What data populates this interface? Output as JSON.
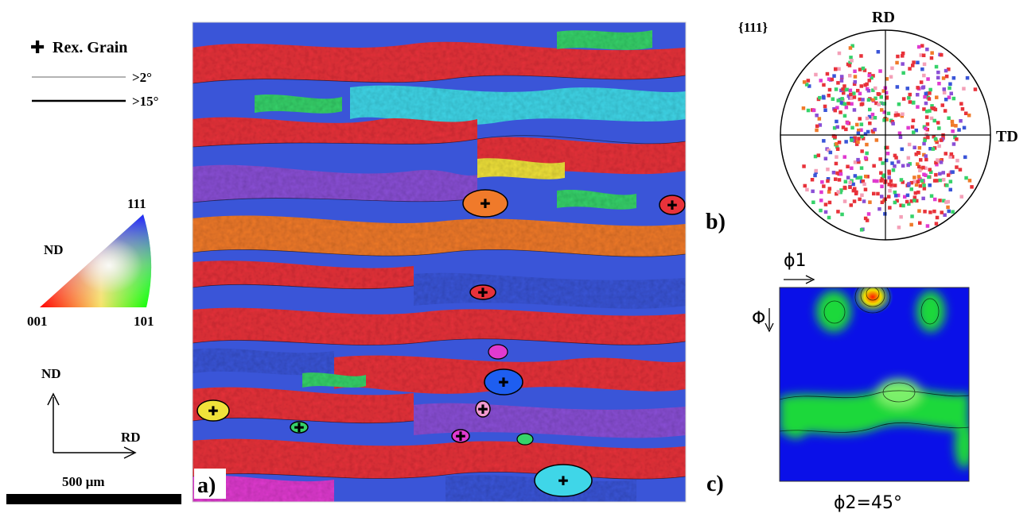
{
  "legend": {
    "rex_grain": "Rex. Grain",
    "low_angle": ">2°",
    "high_angle": ">15°",
    "colors": {
      "low_angle_line": "#9a9a9a",
      "high_angle_line": "#000000",
      "rex_marker": "#000000"
    }
  },
  "ipf_key": {
    "normal": "ND",
    "corner_top": "111",
    "corner_left": "001",
    "corner_right": "101",
    "colors": {
      "001": "#ff0000",
      "101": "#00ff00",
      "111": "#0000ff"
    }
  },
  "axes": {
    "vertical": "ND",
    "horizontal": "RD"
  },
  "scale_bar": {
    "label": "500 μm"
  },
  "panels": {
    "a": {
      "label": "a)",
      "icons": [
        "ebsd-ipf-map"
      ]
    },
    "b": {
      "label": "b)",
      "title": "{111}",
      "top_axis": "RD",
      "right_axis": "TD",
      "icons": [
        "pole-figure"
      ]
    },
    "c": {
      "label": "c)",
      "x_axis": "ϕ1",
      "y_axis": "Φ",
      "section": "ϕ2=45°",
      "icons": [
        "odf-section"
      ]
    }
  },
  "palette": {
    "red": "#e8323a",
    "orange": "#f07a2a",
    "blue": "#3a55d8",
    "violet": "#8a4fd6",
    "green": "#36d26a",
    "cyan": "#3fd6e8",
    "yellow": "#f0e23a",
    "magenta": "#e03ad0",
    "odf_low": "#0a10e8",
    "odf_mid": "#1fd83a",
    "odf_high": "#ff1a00"
  }
}
